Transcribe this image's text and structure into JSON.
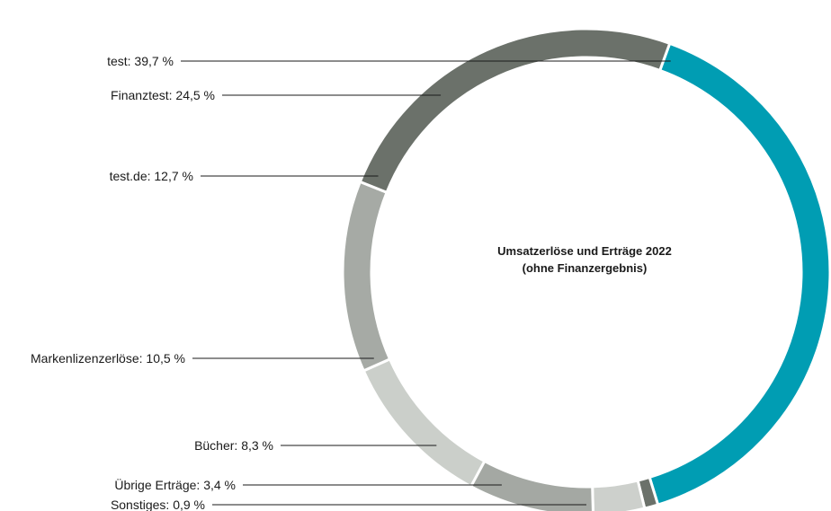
{
  "chart_data": {
    "type": "pie",
    "donut": true,
    "title": "Umsatzerlöse und Erträge 2022",
    "subtitle": "(ohne Finanzergebnis)",
    "slices": [
      {
        "name": "test",
        "value": 39.7,
        "label": "test: 39,7 %",
        "color": "#009db3"
      },
      {
        "name": "Sonstiges",
        "value": 0.9,
        "label": "Sonstiges: 0,9 %",
        "color": "#6b716a"
      },
      {
        "name": "Übrige Erträge",
        "value": 3.4,
        "label": "Übrige Erträge: 3,4 %",
        "color": "#cdd0cc"
      },
      {
        "name": "Bücher",
        "value": 8.3,
        "label": "Bücher: 8,3 %",
        "color": "#a4a8a3"
      },
      {
        "name": "Markenlizenzerlöse",
        "value": 10.5,
        "label": "Markenlizenzerlöse: 10,5 %",
        "color": "#cbcfca"
      },
      {
        "name": "test.de",
        "value": 12.7,
        "label": "test.de: 12,7 %",
        "color": "#a6aaa5"
      },
      {
        "name": "Finanztest",
        "value": 24.5,
        "label": "Finanztest: 24,5 %",
        "color": "#6b716a"
      }
    ]
  }
}
